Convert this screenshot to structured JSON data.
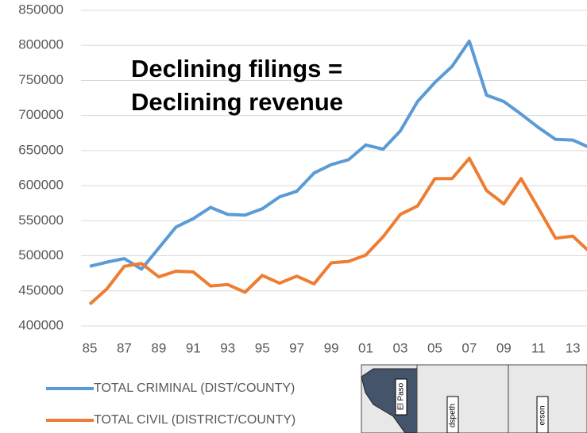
{
  "chart_data": {
    "type": "line",
    "categories": [
      "85",
      null,
      "87",
      null,
      "89",
      null,
      "91",
      null,
      "93",
      null,
      "95",
      null,
      "97",
      null,
      "99",
      null,
      "01",
      null,
      "03",
      null,
      "05",
      null,
      "07",
      null,
      "09",
      null,
      "11",
      null,
      "13",
      null
    ],
    "series": [
      {
        "name": "TOTAL CRIMINAL (DIST/COUNTY)",
        "color": "#5b9bd5",
        "values": [
          485000,
          491000,
          496000,
          481000,
          511000,
          541000,
          553000,
          569000,
          559000,
          558000,
          567000,
          584000,
          592000,
          618000,
          630000,
          637000,
          658000,
          652000,
          678000,
          720000,
          747000,
          770000,
          806000,
          729000,
          720000,
          702000,
          683000,
          666000,
          665000,
          654000
        ]
      },
      {
        "name": "TOTAL CIVIL (DISTRICT/COUNTY)",
        "color": "#ed7d31",
        "values": [
          431000,
          453000,
          485000,
          489000,
          470000,
          478000,
          477000,
          457000,
          459000,
          448000,
          472000,
          461000,
          471000,
          460000,
          490000,
          492000,
          501000,
          527000,
          559000,
          571000,
          610000,
          610000,
          639000,
          593000,
          574000,
          610000,
          568000,
          525000,
          528000,
          505000
        ]
      }
    ],
    "ylim": [
      400000,
      850000
    ],
    "yticks": [
      400000,
      450000,
      500000,
      550000,
      600000,
      650000,
      700000,
      750000,
      800000,
      850000
    ],
    "grid": true,
    "annotations": [
      "Declining filings =",
      "Declining revenue"
    ],
    "map_labels": [
      "El Paso",
      "dspeth",
      "erson"
    ]
  }
}
